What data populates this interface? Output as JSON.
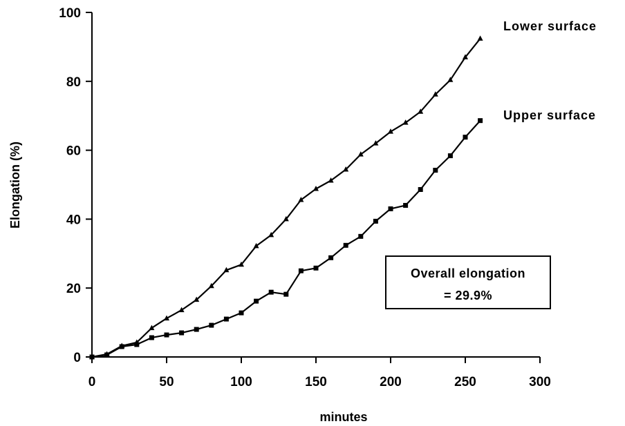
{
  "chart_data": {
    "type": "line",
    "xlabel": "minutes",
    "ylabel": "Elongation (%)",
    "xlim": [
      0,
      300
    ],
    "ylim": [
      0,
      100
    ],
    "x_ticks": [
      "0",
      "50",
      "100",
      "150",
      "200",
      "250",
      "300"
    ],
    "y_ticks": [
      "0",
      "20",
      "40",
      "60",
      "80",
      "100"
    ],
    "grid": false,
    "series": [
      {
        "name": "Lower surface",
        "marker": "triangle",
        "x": [
          0,
          10,
          20,
          30,
          40,
          50,
          60,
          70,
          80,
          90,
          100,
          110,
          120,
          130,
          140,
          150,
          160,
          170,
          180,
          190,
          200,
          210,
          220,
          230,
          240,
          250,
          260
        ],
        "y": [
          0,
          0.8,
          3.2,
          4.2,
          8.4,
          11.2,
          13.6,
          16.6,
          20.6,
          25.2,
          26.8,
          32.2,
          35.4,
          40.0,
          45.6,
          48.8,
          51.2,
          54.4,
          58.8,
          62.0,
          65.4,
          68.0,
          71.2,
          76.2,
          80.4,
          87.0,
          92.4
        ]
      },
      {
        "name": "Upper surface",
        "marker": "square",
        "x": [
          0,
          10,
          20,
          30,
          40,
          50,
          60,
          70,
          80,
          90,
          100,
          110,
          120,
          130,
          140,
          150,
          160,
          170,
          180,
          190,
          200,
          210,
          220,
          230,
          240,
          250,
          260
        ],
        "y": [
          0,
          0.6,
          3.0,
          3.6,
          5.6,
          6.4,
          7.0,
          8.0,
          9.2,
          11.0,
          12.8,
          16.2,
          18.8,
          18.2,
          25.0,
          25.8,
          28.8,
          32.4,
          35.0,
          39.4,
          43.0,
          44.0,
          48.6,
          54.2,
          58.4,
          63.8,
          68.6
        ]
      }
    ],
    "annotation": {
      "line1": "Overall elongation",
      "line2": "= 29.9%"
    }
  }
}
